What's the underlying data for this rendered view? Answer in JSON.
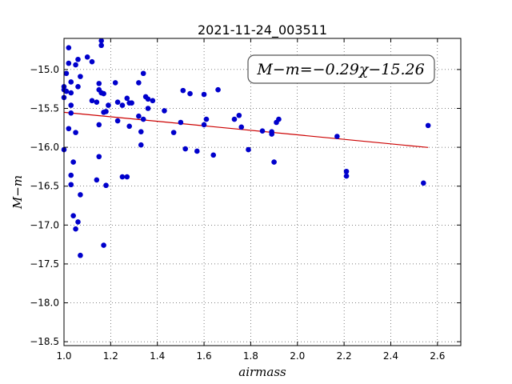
{
  "chart_data": {
    "type": "scatter",
    "title": "2021-11-24_003511",
    "xlabel": "airmass",
    "ylabel": "M−m",
    "xlim": [
      1.0,
      2.7
    ],
    "ylim": [
      -18.55,
      -14.6
    ],
    "y_inverted": true,
    "grid": true,
    "x_ticks": [
      "1.0",
      "1.2",
      "1.4",
      "1.6",
      "1.8",
      "2.0",
      "2.2",
      "2.4",
      "2.6"
    ],
    "x_tick_values": [
      1.0,
      1.2,
      1.4,
      1.6,
      1.8,
      2.0,
      2.2,
      2.4,
      2.6
    ],
    "y_ticks": [
      "−15.0",
      "−15.5",
      "−16.0",
      "−16.5",
      "−17.0",
      "−17.5",
      "−18.0",
      "−18.5"
    ],
    "y_tick_values": [
      -15.0,
      -15.5,
      -16.0,
      -16.5,
      -17.0,
      -17.5,
      -18.0,
      -18.5
    ],
    "annotation": "M−m=−0.29χ−15.26",
    "point_color": "#0000cc",
    "fit_color": "#cc0000",
    "fit": {
      "slope": -0.29,
      "intercept": -15.26,
      "x_range": [
        1.0,
        2.56
      ]
    },
    "points": [
      [
        1.0,
        -15.36
      ],
      [
        1.0,
        -15.22
      ],
      [
        1.0,
        -15.26
      ],
      [
        1.0,
        -16.03
      ],
      [
        1.01,
        -15.05
      ],
      [
        1.01,
        -15.28
      ],
      [
        1.02,
        -14.72
      ],
      [
        1.02,
        -14.92
      ],
      [
        1.02,
        -15.76
      ],
      [
        1.03,
        -15.16
      ],
      [
        1.03,
        -15.3
      ],
      [
        1.03,
        -15.46
      ],
      [
        1.03,
        -15.56
      ],
      [
        1.03,
        -16.36
      ],
      [
        1.03,
        -16.48
      ],
      [
        1.04,
        -16.19
      ],
      [
        1.04,
        -16.88
      ],
      [
        1.05,
        -14.94
      ],
      [
        1.05,
        -15.81
      ],
      [
        1.05,
        -17.05
      ],
      [
        1.06,
        -14.87
      ],
      [
        1.06,
        -15.22
      ],
      [
        1.06,
        -16.96
      ],
      [
        1.07,
        -15.09
      ],
      [
        1.07,
        -16.61
      ],
      [
        1.07,
        -17.39
      ],
      [
        1.1,
        -14.84
      ],
      [
        1.12,
        -14.9
      ],
      [
        1.12,
        -15.4
      ],
      [
        1.14,
        -15.42
      ],
      [
        1.14,
        -16.42
      ],
      [
        1.15,
        -15.18
      ],
      [
        1.15,
        -15.26
      ],
      [
        1.15,
        -15.71
      ],
      [
        1.15,
        -16.12
      ],
      [
        1.16,
        -14.63
      ],
      [
        1.16,
        -14.69
      ],
      [
        1.16,
        -15.3
      ],
      [
        1.17,
        -15.31
      ],
      [
        1.17,
        -15.55
      ],
      [
        1.17,
        -17.26
      ],
      [
        1.18,
        -15.54
      ],
      [
        1.18,
        -16.49
      ],
      [
        1.19,
        -15.46
      ],
      [
        1.22,
        -15.17
      ],
      [
        1.23,
        -15.42
      ],
      [
        1.23,
        -15.66
      ],
      [
        1.25,
        -15.46
      ],
      [
        1.25,
        -16.38
      ],
      [
        1.27,
        -15.37
      ],
      [
        1.27,
        -16.38
      ],
      [
        1.28,
        -15.43
      ],
      [
        1.28,
        -15.73
      ],
      [
        1.29,
        -15.43
      ],
      [
        1.32,
        -15.17
      ],
      [
        1.32,
        -15.6
      ],
      [
        1.33,
        -15.8
      ],
      [
        1.33,
        -15.97
      ],
      [
        1.34,
        -15.05
      ],
      [
        1.34,
        -15.64
      ],
      [
        1.35,
        -15.35
      ],
      [
        1.36,
        -15.38
      ],
      [
        1.36,
        -15.5
      ],
      [
        1.38,
        -15.4
      ],
      [
        1.43,
        -15.53
      ],
      [
        1.47,
        -15.81
      ],
      [
        1.5,
        -15.68
      ],
      [
        1.51,
        -15.27
      ],
      [
        1.52,
        -16.02
      ],
      [
        1.54,
        -15.31
      ],
      [
        1.57,
        -16.05
      ],
      [
        1.6,
        -15.32
      ],
      [
        1.6,
        -15.71
      ],
      [
        1.61,
        -15.64
      ],
      [
        1.64,
        -16.1
      ],
      [
        1.66,
        -15.26
      ],
      [
        1.73,
        -15.64
      ],
      [
        1.75,
        -15.59
      ],
      [
        1.76,
        -15.74
      ],
      [
        1.79,
        -16.03
      ],
      [
        1.85,
        -15.79
      ],
      [
        1.89,
        -15.8
      ],
      [
        1.89,
        -15.83
      ],
      [
        1.9,
        -16.19
      ],
      [
        1.91,
        -15.68
      ],
      [
        1.92,
        -15.64
      ],
      [
        2.17,
        -15.86
      ],
      [
        2.21,
        -16.31
      ],
      [
        2.21,
        -16.37
      ],
      [
        2.54,
        -16.46
      ],
      [
        2.56,
        -15.72
      ]
    ]
  }
}
